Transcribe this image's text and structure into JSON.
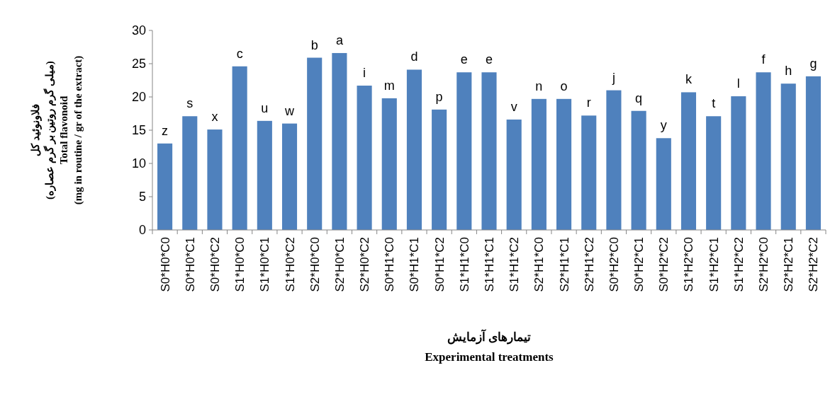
{
  "chart_data": {
    "type": "bar",
    "xlabel": "تیمارهای آزمایش\nExperimental treatments",
    "ylabel": "فلاونوئید کل\n(میلی گرم روتین بر گرم عصاره)\nTotal flavonoid\n(mg in routine / gr of the extract)",
    "categories": [
      "S0*H0*C0",
      "S0*H0*C1",
      "S0*H0*C2",
      "S1*H0*C0",
      "S1*H0*C1",
      "S1*H0*C2",
      "S2*H0*C0",
      "S2*H0*C1",
      "S2*H0*C2",
      "S0*H1*C0",
      "S0*H1*C1",
      "S0*H1*C2",
      "S1*H1*C0",
      "S1*H1*C1",
      "S1*H1*C2",
      "S2*H1*C0",
      "S2*H1*C1",
      "S2*H1*C2",
      "S0*H2*C0",
      "S0*H2*C1",
      "S0*H2*C2",
      "S1*H2*C0",
      "S1*H2*C1",
      "S1*H2*C2",
      "S2*H2*C0",
      "S2*H2*C1",
      "S2*H2*C2"
    ],
    "values": [
      13.0,
      17.1,
      15.1,
      24.6,
      16.4,
      16.0,
      25.9,
      26.6,
      21.7,
      19.8,
      24.1,
      18.1,
      23.7,
      23.7,
      16.6,
      19.7,
      19.7,
      17.2,
      21.0,
      17.9,
      13.8,
      20.7,
      17.1,
      20.1,
      23.7,
      22.0,
      23.1
    ],
    "color": "#4f81bd",
    "ylim": [
      0,
      30
    ],
    "yticks": [
      0,
      5,
      10,
      15,
      20,
      25,
      30
    ],
    "grid": false,
    "annotations": [
      {
        "text": "z",
        "x": "S0*H0*C0",
        "y": 13.0
      },
      {
        "text": "s",
        "x": "S0*H0*C1",
        "y": 17.1
      },
      {
        "text": "x",
        "x": "S0*H0*C2",
        "y": 15.1
      },
      {
        "text": "c",
        "x": "S1*H0*C0",
        "y": 24.6
      },
      {
        "text": "u",
        "x": "S1*H0*C1",
        "y": 16.4
      },
      {
        "text": "w",
        "x": "S1*H0*C2",
        "y": 16.0
      },
      {
        "text": "b",
        "x": "S2*H0*C0",
        "y": 25.9
      },
      {
        "text": "a",
        "x": "S2*H0*C1",
        "y": 26.6
      },
      {
        "text": "i",
        "x": "S2*H0*C2",
        "y": 21.7
      },
      {
        "text": "m",
        "x": "S0*H1*C0",
        "y": 19.8
      },
      {
        "text": "d",
        "x": "S0*H1*C1",
        "y": 24.1
      },
      {
        "text": "p",
        "x": "S0*H1*C2",
        "y": 18.1
      },
      {
        "text": "e",
        "x": "S1*H1*C0",
        "y": 23.7
      },
      {
        "text": "e",
        "x": "S1*H1*C1",
        "y": 23.7
      },
      {
        "text": "v",
        "x": "S1*H1*C2",
        "y": 16.6
      },
      {
        "text": "n",
        "x": "S2*H1*C0",
        "y": 19.7
      },
      {
        "text": "o",
        "x": "S2*H1*C1",
        "y": 19.7
      },
      {
        "text": "r",
        "x": "S2*H1*C2",
        "y": 17.2
      },
      {
        "text": "j",
        "x": "S0*H2*C0",
        "y": 21.0
      },
      {
        "text": "q",
        "x": "S0*H2*C1",
        "y": 17.9
      },
      {
        "text": "y",
        "x": "S0*H2*C2",
        "y": 13.8
      },
      {
        "text": "k",
        "x": "S1*H2*C0",
        "y": 20.7
      },
      {
        "text": "t",
        "x": "S1*H2*C1",
        "y": 17.1
      },
      {
        "text": "l",
        "x": "S1*H2*C2",
        "y": 20.1
      },
      {
        "text": "f",
        "x": "S2*H2*C0",
        "y": 23.7
      },
      {
        "text": "h",
        "x": "S2*H2*C1",
        "y": 22.0
      },
      {
        "text": "g",
        "x": "S2*H2*C2",
        "y": 23.1
      }
    ]
  }
}
